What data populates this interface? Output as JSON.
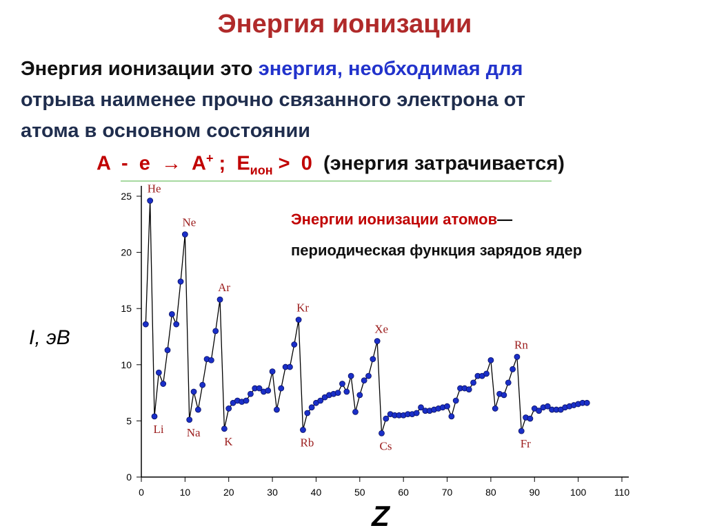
{
  "slide": {
    "title": "Энергия ионизации",
    "definition": [
      "Энергия ионизации это",
      "энергия, необходимая для",
      "отрыва наименее прочно связанного электрона от",
      "атома в основном состоянии"
    ],
    "equation": {
      "lhs": "A  -  e  →  A",
      "sup": "+",
      "mid": " ;  E",
      "sub": "ион",
      "rhs": " >  0",
      "note": "(энергия затрачивается)"
    },
    "note": {
      "highlight": "Энергии ионизации атомов",
      "dash": "—",
      "rest": "периодическая функция зарядов ядер"
    }
  },
  "chart_data": {
    "type": "line",
    "x": [
      1,
      2,
      3,
      4,
      5,
      6,
      7,
      8,
      9,
      10,
      11,
      12,
      13,
      14,
      15,
      16,
      17,
      18,
      19,
      20,
      21,
      22,
      23,
      24,
      25,
      26,
      27,
      28,
      29,
      30,
      31,
      32,
      33,
      34,
      35,
      36,
      37,
      38,
      39,
      40,
      41,
      42,
      43,
      44,
      45,
      46,
      47,
      48,
      49,
      50,
      51,
      52,
      53,
      54,
      55,
      56,
      57,
      58,
      59,
      60,
      61,
      62,
      63,
      64,
      65,
      66,
      67,
      68,
      69,
      70,
      71,
      72,
      73,
      74,
      75,
      76,
      77,
      78,
      79,
      80,
      81,
      82,
      83,
      84,
      85,
      86,
      87,
      88,
      89,
      90,
      91,
      92,
      93,
      94,
      95,
      96,
      97,
      98,
      99,
      100,
      101,
      102
    ],
    "values": [
      13.6,
      24.6,
      5.4,
      9.3,
      8.3,
      11.3,
      14.5,
      13.6,
      17.4,
      21.6,
      5.1,
      7.6,
      6.0,
      8.2,
      10.5,
      10.4,
      13.0,
      15.8,
      4.3,
      6.1,
      6.6,
      6.8,
      6.7,
      6.8,
      7.4,
      7.9,
      7.9,
      7.6,
      7.7,
      9.4,
      6.0,
      7.9,
      9.8,
      9.8,
      11.8,
      14.0,
      4.2,
      5.7,
      6.2,
      6.6,
      6.8,
      7.1,
      7.3,
      7.4,
      7.5,
      8.3,
      7.6,
      9.0,
      5.8,
      7.3,
      8.6,
      9.0,
      10.5,
      12.1,
      3.9,
      5.2,
      5.6,
      5.5,
      5.5,
      5.5,
      5.6,
      5.6,
      5.7,
      6.2,
      5.9,
      5.9,
      6.0,
      6.1,
      6.2,
      6.3,
      5.4,
      6.8,
      7.9,
      7.9,
      7.8,
      8.4,
      9.0,
      9.0,
      9.2,
      10.4,
      6.1,
      7.4,
      7.3,
      8.4,
      9.6,
      10.7,
      4.1,
      5.3,
      5.2,
      6.1,
      5.9,
      6.2,
      6.3,
      6.0,
      6.0,
      6.0,
      6.2,
      6.3,
      6.4,
      6.5,
      6.6,
      6.6
    ],
    "color": "#1a2fc8",
    "line_color": "#000000",
    "xlim": [
      0,
      110
    ],
    "xticks": [
      0,
      10,
      20,
      30,
      40,
      50,
      60,
      70,
      80,
      90,
      100,
      110
    ],
    "ylim": [
      0,
      25
    ],
    "yticks": [
      0,
      5,
      10,
      15,
      20,
      25
    ],
    "xlabel": "Z",
    "ylabel": "I, эВ",
    "annotations": [
      {
        "text": "He",
        "x": 2
      },
      {
        "text": "Li",
        "x": 3
      },
      {
        "text": "Ne",
        "x": 10
      },
      {
        "text": "Na",
        "x": 11
      },
      {
        "text": "Ar",
        "x": 18
      },
      {
        "text": "K",
        "x": 19
      },
      {
        "text": "Kr",
        "x": 36
      },
      {
        "text": "Rb",
        "x": 37
      },
      {
        "text": "Xe",
        "x": 54
      },
      {
        "text": "Cs",
        "x": 55
      },
      {
        "text": "Rn",
        "x": 86
      },
      {
        "text": "Fr",
        "x": 87
      }
    ]
  }
}
